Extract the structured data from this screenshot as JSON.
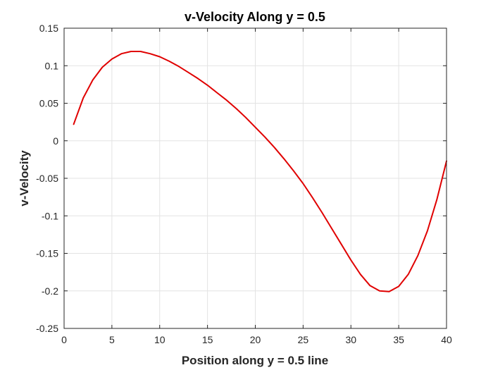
{
  "chart_data": {
    "type": "line",
    "title": "v-Velocity Along y = 0.5",
    "xlabel": "Position along y = 0.5 line",
    "ylabel": "v-Velocity",
    "xlim": [
      0,
      40
    ],
    "ylim": [
      -0.25,
      0.15
    ],
    "xticks": [
      0,
      5,
      10,
      15,
      20,
      25,
      30,
      35,
      40
    ],
    "xtick_labels": [
      "0",
      "5",
      "10",
      "15",
      "20",
      "25",
      "30",
      "35",
      "40"
    ],
    "yticks": [
      0.15,
      0.1,
      0.05,
      0,
      -0.05,
      -0.1,
      -0.15,
      -0.2,
      -0.25
    ],
    "ytick_labels": [
      "0.15",
      "0.1",
      "0.05",
      "0",
      "-0.05",
      "-0.1",
      "-0.15",
      "-0.2",
      "-0.25"
    ],
    "grid": true,
    "series": [
      {
        "color": "#e00000",
        "x": [
          1,
          2,
          3,
          4,
          5,
          6,
          7,
          8,
          9,
          10,
          11,
          12,
          13,
          14,
          15,
          16,
          17,
          18,
          19,
          20,
          21,
          22,
          23,
          24,
          25,
          26,
          27,
          28,
          29,
          30,
          31,
          32,
          33,
          34,
          35,
          36,
          37,
          38,
          39,
          40
        ],
        "y": [
          0.022,
          0.057,
          0.081,
          0.098,
          0.109,
          0.116,
          0.119,
          0.119,
          0.116,
          0.112,
          0.106,
          0.099,
          0.091,
          0.083,
          0.074,
          0.064,
          0.054,
          0.043,
          0.031,
          0.018,
          0.005,
          -0.009,
          -0.024,
          -0.04,
          -0.057,
          -0.076,
          -0.096,
          -0.117,
          -0.138,
          -0.159,
          -0.178,
          -0.193,
          -0.2,
          -0.201,
          -0.194,
          -0.178,
          -0.153,
          -0.12,
          -0.078,
          -0.027
        ]
      }
    ]
  }
}
